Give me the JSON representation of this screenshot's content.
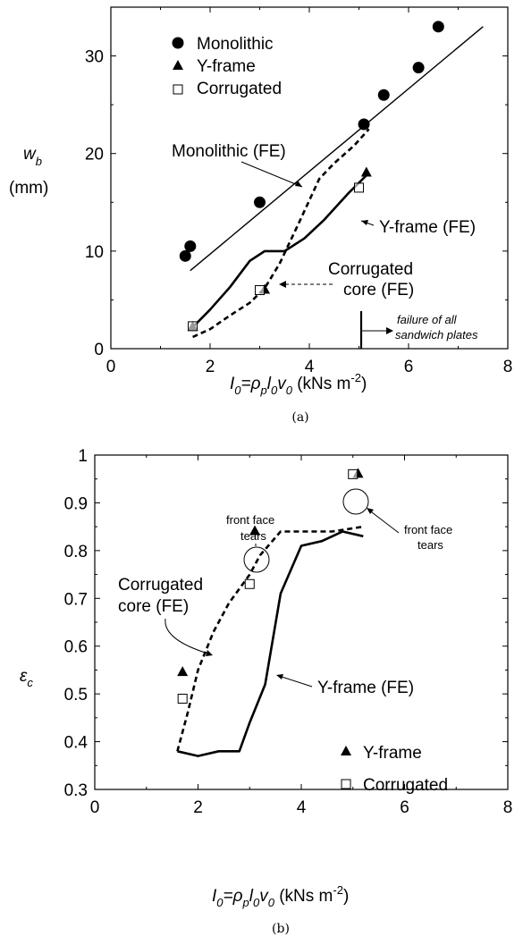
{
  "chart_data": [
    {
      "type": "scatter",
      "panel_label": "(a)",
      "xlim": [
        0,
        8
      ],
      "ylim": [
        0,
        35
      ],
      "xticks": [
        0,
        2,
        4,
        6,
        8
      ],
      "yticks": [
        0,
        10,
        20,
        30
      ],
      "xlabel": {
        "main": "I",
        "sub0": "0",
        "eq": "=ρ",
        "subp": "p",
        "l": "l",
        "sub1": "0",
        "v": "v",
        "sub2": "0",
        "unit": " (kNs m",
        "exp": "-2",
        "close": ")"
      },
      "ylabel": {
        "main": "w",
        "sub": "b",
        "unit": "(mm)"
      },
      "legend": [
        "Monolithic",
        "Y-frame",
        "Corrugated"
      ],
      "series": [
        {
          "name": "Monolithic",
          "marker": "circle",
          "points": [
            [
              1.5,
              9.5
            ],
            [
              1.6,
              10.5
            ],
            [
              3.0,
              15.0
            ],
            [
              5.1,
              23.0
            ],
            [
              5.5,
              26.0
            ],
            [
              6.2,
              28.8
            ],
            [
              6.6,
              33.0
            ]
          ]
        },
        {
          "name": "Y-frame",
          "marker": "triangle",
          "points": [
            [
              1.65,
              2.2
            ],
            [
              3.1,
              6.0
            ],
            [
              5.15,
              18.0
            ]
          ]
        },
        {
          "name": "Corrugated",
          "marker": "square",
          "points": [
            [
              1.65,
              2.3
            ],
            [
              3.0,
              6.0
            ],
            [
              5.0,
              16.5
            ]
          ]
        },
        {
          "name": "Monolithic (FE)",
          "line": "solid-thin",
          "points": [
            [
              1.6,
              8.0
            ],
            [
              7.5,
              33.0
            ]
          ]
        },
        {
          "name": "Y-frame (FE)",
          "line": "solid-thick",
          "points": [
            [
              1.65,
              2.2
            ],
            [
              2.0,
              4.0
            ],
            [
              2.4,
              6.3
            ],
            [
              2.8,
              9.0
            ],
            [
              3.1,
              10.0
            ],
            [
              3.5,
              10.0
            ],
            [
              3.9,
              11.3
            ],
            [
              4.3,
              13.2
            ],
            [
              4.8,
              16.0
            ],
            [
              5.2,
              18.0
            ]
          ]
        },
        {
          "name": "Corrugated core (FE)",
          "line": "dashed-thick",
          "points": [
            [
              1.65,
              1.2
            ],
            [
              2.0,
              2.0
            ],
            [
              2.4,
              3.4
            ],
            [
              2.8,
              4.7
            ],
            [
              3.1,
              6.2
            ],
            [
              3.4,
              8.7
            ],
            [
              3.8,
              13.0
            ],
            [
              4.2,
              17.4
            ],
            [
              4.5,
              19.0
            ],
            [
              4.9,
              20.8
            ],
            [
              5.2,
              22.5
            ]
          ]
        }
      ],
      "annotations": {
        "monolithic_fe": "Monolithic (FE)",
        "yframe_fe": "Y-frame (FE)",
        "corrugated_fe_1": "Corrugated",
        "corrugated_fe_2": "core (FE)",
        "failure_1": "failure of all",
        "failure_2": "sandwich plates",
        "failure_x": 5.1
      }
    },
    {
      "type": "scatter",
      "panel_label": "(b)",
      "xlim": [
        0,
        8
      ],
      "ylim": [
        0.3,
        1.0
      ],
      "xticks": [
        0,
        2,
        4,
        6,
        8
      ],
      "yticks": [
        "0.3",
        "0.4",
        "0.5",
        "0.6",
        "0.7",
        "0.8",
        "0.9",
        "1"
      ],
      "xlabel": {
        "main": "I",
        "sub0": "0",
        "eq": "=ρ",
        "subp": "p",
        "l": "l",
        "sub1": "0",
        "v": "v",
        "sub2": "0",
        "unit": " (kNs m",
        "exp": "-2",
        "close": ")"
      },
      "ylabel": {
        "main": "ε",
        "sub": "c"
      },
      "legend": [
        "Y-frame",
        "Corrugated"
      ],
      "series": [
        {
          "name": "Y-frame",
          "marker": "triangle",
          "points": [
            [
              1.7,
              0.545
            ],
            [
              3.1,
              0.84
            ],
            [
              5.1,
              0.96
            ]
          ]
        },
        {
          "name": "Corrugated",
          "marker": "square",
          "points": [
            [
              1.7,
              0.49
            ],
            [
              3.0,
              0.73
            ],
            [
              5.0,
              0.96
            ]
          ]
        },
        {
          "name": "Y-frame (FE)",
          "line": "solid-thick",
          "points": [
            [
              1.6,
              0.38
            ],
            [
              2.0,
              0.37
            ],
            [
              2.4,
              0.38
            ],
            [
              2.8,
              0.38
            ],
            [
              3.0,
              0.44
            ],
            [
              3.3,
              0.52
            ],
            [
              3.6,
              0.71
            ],
            [
              4.0,
              0.81
            ],
            [
              4.4,
              0.82
            ],
            [
              4.8,
              0.84
            ],
            [
              5.2,
              0.83
            ]
          ]
        },
        {
          "name": "Corrugated core (FE)",
          "line": "dashed-thick",
          "points": [
            [
              1.6,
              0.38
            ],
            [
              1.8,
              0.46
            ],
            [
              2.0,
              0.55
            ],
            [
              2.3,
              0.63
            ],
            [
              2.6,
              0.69
            ],
            [
              3.0,
              0.75
            ],
            [
              3.2,
              0.79
            ],
            [
              3.6,
              0.84
            ],
            [
              4.0,
              0.84
            ],
            [
              4.6,
              0.84
            ],
            [
              5.2,
              0.85
            ]
          ]
        }
      ],
      "annotations": {
        "tears_left_1": "front face",
        "tears_left_2": "tears",
        "tears_right_1": "front face",
        "tears_right_2": "tears",
        "corrugated_fe_1": "Corrugated",
        "corrugated_fe_2": "core (FE)",
        "yframe_fe": "Y-frame (FE)"
      }
    }
  ]
}
